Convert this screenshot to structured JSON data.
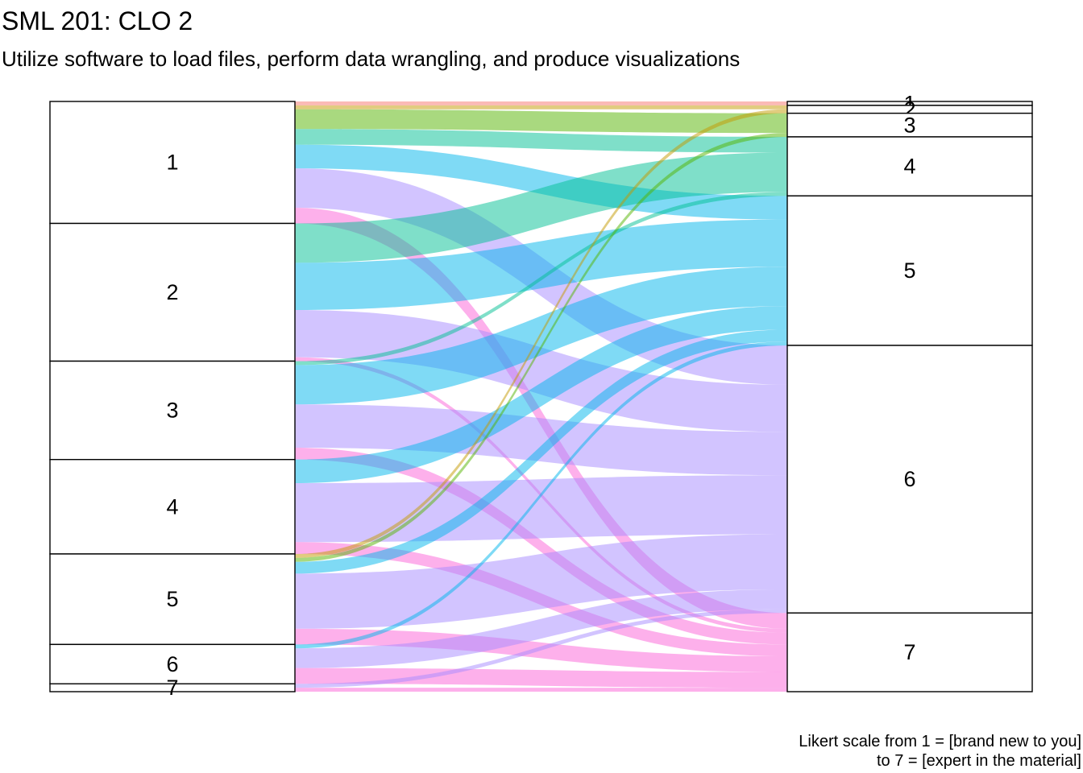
{
  "title": "SML 201: CLO 2",
  "subtitle": "Utilize software to load files, perform data wrangling, and produce visualizations",
  "caption": {
    "line1": "Likert scale from 1 = [brand new to you]",
    "line2": "to 7 = [expert in the material]"
  },
  "chart_data": {
    "type": "alluvial",
    "axes": [
      "",
      ""
    ],
    "categories": [
      "1",
      "2",
      "3",
      "4",
      "5",
      "6",
      "7"
    ],
    "colors": {
      "1": "#F8766D",
      "2": "#C49A00",
      "3": "#53B400",
      "4": "#00C094",
      "5": "#00B6EB",
      "6": "#A58AFF",
      "7": "#FB61D7"
    },
    "flows": [
      {
        "from": "1",
        "to": "1",
        "value": 1
      },
      {
        "from": "1",
        "to": "2",
        "value": 1
      },
      {
        "from": "1",
        "to": "3",
        "value": 5
      },
      {
        "from": "1",
        "to": "4",
        "value": 4
      },
      {
        "from": "1",
        "to": "5",
        "value": 6
      },
      {
        "from": "1",
        "to": "6",
        "value": 10
      },
      {
        "from": "1",
        "to": "7",
        "value": 4
      },
      {
        "from": "2",
        "to": "4",
        "value": 10
      },
      {
        "from": "2",
        "to": "5",
        "value": 12
      },
      {
        "from": "2",
        "to": "6",
        "value": 12
      },
      {
        "from": "2",
        "to": "7",
        "value": 1
      },
      {
        "from": "3",
        "to": "4",
        "value": 1
      },
      {
        "from": "3",
        "to": "5",
        "value": 10
      },
      {
        "from": "3",
        "to": "6",
        "value": 11
      },
      {
        "from": "3",
        "to": "7",
        "value": 3
      },
      {
        "from": "4",
        "to": "5",
        "value": 6
      },
      {
        "from": "4",
        "to": "6",
        "value": 15
      },
      {
        "from": "4",
        "to": "7",
        "value": 3
      },
      {
        "from": "5",
        "to": "2",
        "value": 1
      },
      {
        "from": "5",
        "to": "3",
        "value": 1
      },
      {
        "from": "5",
        "to": "5",
        "value": 3
      },
      {
        "from": "5",
        "to": "6",
        "value": 14
      },
      {
        "from": "5",
        "to": "7",
        "value": 4
      },
      {
        "from": "6",
        "to": "5",
        "value": 1
      },
      {
        "from": "6",
        "to": "6",
        "value": 5
      },
      {
        "from": "6",
        "to": "7",
        "value": 4
      },
      {
        "from": "7",
        "to": "6",
        "value": 1
      },
      {
        "from": "7",
        "to": "7",
        "value": 1
      }
    ]
  }
}
